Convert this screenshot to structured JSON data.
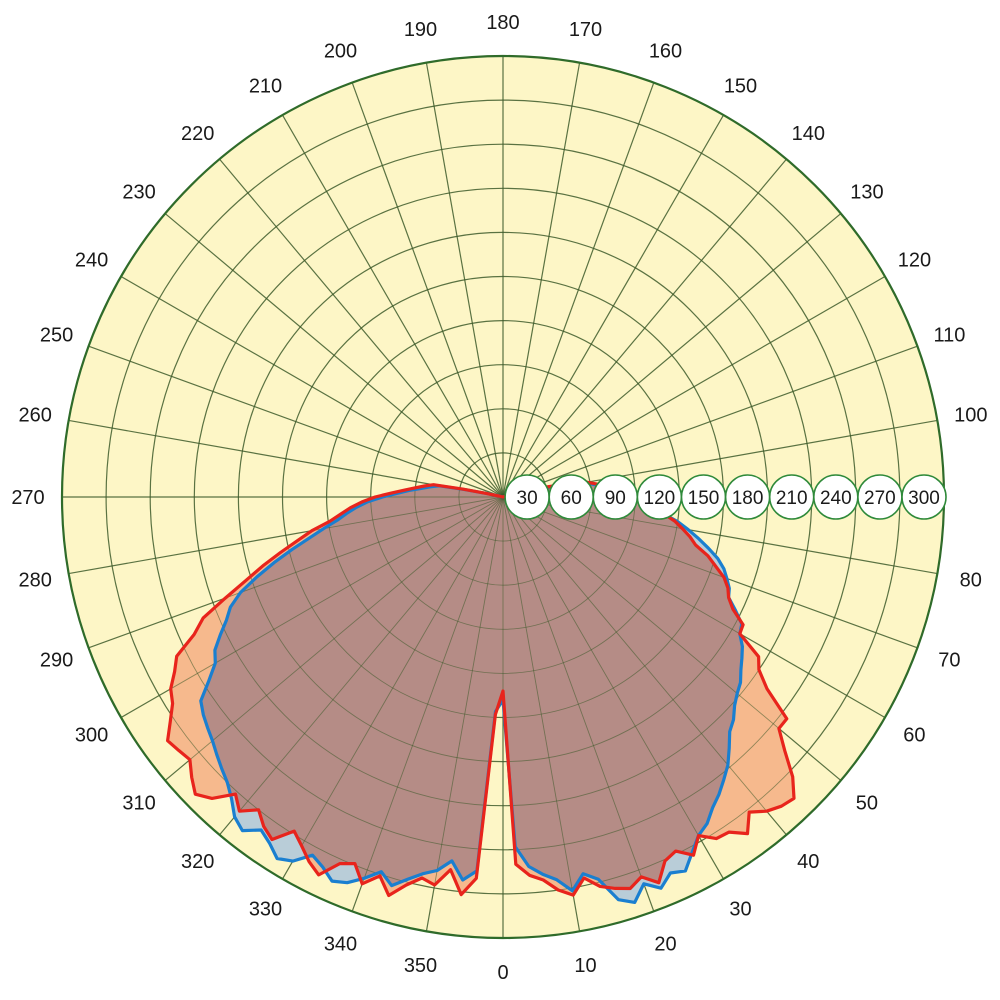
{
  "chart_data": {
    "type": "polar",
    "title": "",
    "angular_axis": {
      "direction": "counterclockwise",
      "zero_at": "bottom",
      "labels": [
        "0",
        "10",
        "20",
        "30",
        "40",
        "50",
        "60",
        "70",
        "80",
        "100",
        "110",
        "120",
        "130",
        "140",
        "150",
        "160",
        "170",
        "180",
        "190",
        "200",
        "210",
        "220",
        "230",
        "240",
        "250",
        "260",
        "270",
        "280",
        "290",
        "300",
        "310",
        "320",
        "330",
        "340",
        "350"
      ],
      "label_angles": [
        0,
        10,
        20,
        30,
        40,
        50,
        60,
        70,
        80,
        100,
        110,
        120,
        130,
        140,
        150,
        160,
        170,
        180,
        190,
        200,
        210,
        220,
        230,
        240,
        250,
        260,
        270,
        280,
        290,
        300,
        310,
        320,
        330,
        340,
        350
      ]
    },
    "radial_axis": {
      "range": [
        0,
        300
      ],
      "ticks": [
        30,
        60,
        90,
        120,
        150,
        180,
        210,
        240,
        270,
        300
      ],
      "tick_labels": [
        "30",
        "60",
        "90",
        "120",
        "150",
        "180",
        "210",
        "240",
        "270",
        "300"
      ],
      "label_position": "right"
    },
    "grid": true,
    "colors": {
      "background": "#fdf6c6",
      "outer_ring": "#2f6b2a",
      "red_line": "#e8241c",
      "red_fill": "#f6b98d",
      "blue_line": "#1a7fd0",
      "blue_fill": "#b9cdd8",
      "overlap_fill": "#b58c86"
    },
    "series": [
      {
        "color": "red",
        "theta": [
          0,
          2,
          4,
          6,
          8,
          10,
          12,
          14,
          16,
          18,
          20,
          22,
          24,
          26,
          28,
          30,
          32,
          34,
          36,
          38,
          40,
          42,
          44,
          46,
          48,
          50,
          52,
          54,
          56,
          58,
          60,
          62,
          64,
          66,
          68,
          70,
          72,
          74,
          76,
          78,
          80,
          82,
          84,
          86,
          88,
          90,
          92,
          94,
          96,
          98,
          100,
          101,
          102,
          103,
          104,
          105,
          106,
          107,
          108,
          109,
          110,
          251,
          252,
          253,
          254,
          255,
          256,
          257,
          258,
          259,
          260,
          262,
          264,
          266,
          268,
          270,
          272,
          274,
          276,
          278,
          280,
          282,
          284,
          286,
          288,
          290,
          292,
          294,
          296,
          298,
          300,
          302,
          304,
          306,
          308,
          310,
          312,
          314,
          316,
          318,
          320,
          322,
          324,
          326,
          328,
          330,
          332,
          334,
          336,
          338,
          340,
          342,
          344,
          346,
          348,
          350,
          352,
          354,
          356,
          358
        ],
        "r": [
          132,
          250,
          258,
          262,
          270,
          275,
          265,
          273,
          277,
          280,
          275,
          283,
          271,
          268,
          276,
          266,
          274,
          275,
          283,
          272,
          279,
          283,
          285,
          274,
          258,
          245,
          245,
          222,
          210,
          205,
          186,
          185,
          174,
          168,
          165,
          160,
          152,
          145,
          135,
          130,
          124,
          118,
          110,
          102,
          97,
          90,
          82,
          76,
          70,
          64,
          58,
          50,
          40,
          30,
          15,
          2,
          0,
          0,
          0,
          0,
          0,
          0,
          0,
          0,
          0,
          0,
          0,
          3,
          12,
          28,
          48,
          54,
          60,
          67,
          76,
          87,
          96,
          104,
          111,
          119,
          132,
          143,
          156,
          170,
          184,
          201,
          220,
          230,
          247,
          253,
          261,
          265,
          273,
          282,
          280,
          278,
          285,
          291,
          285,
          272,
          279,
          270,
          277,
          281,
          268,
          274,
          281,
          286,
          273,
          269,
          280,
          271,
          282,
          272,
          265,
          268,
          256,
          272,
          260,
          148
        ]
      },
      {
        "color": "blue",
        "theta": [
          0,
          2,
          4,
          6,
          8,
          10,
          12,
          14,
          16,
          18,
          20,
          22,
          24,
          26,
          28,
          30,
          32,
          34,
          36,
          38,
          40,
          42,
          44,
          46,
          48,
          50,
          52,
          54,
          56,
          58,
          60,
          62,
          64,
          66,
          68,
          70,
          72,
          74,
          76,
          78,
          80,
          82,
          84,
          86,
          88,
          90,
          92,
          94,
          96,
          98,
          100,
          101,
          102,
          103,
          104,
          105,
          106,
          107,
          108,
          109,
          110,
          251,
          252,
          253,
          254,
          255,
          256,
          257,
          258,
          259,
          260,
          262,
          264,
          266,
          268,
          270,
          272,
          274,
          276,
          278,
          280,
          282,
          284,
          286,
          288,
          290,
          292,
          294,
          296,
          298,
          300,
          302,
          304,
          306,
          308,
          310,
          312,
          314,
          316,
          318,
          320,
          322,
          324,
          326,
          328,
          330,
          332,
          334,
          336,
          338,
          340,
          342,
          344,
          346,
          348,
          350,
          352,
          354,
          356,
          358
        ],
        "r": [
          138,
          238,
          252,
          258,
          263,
          272,
          262,
          268,
          285,
          290,
          280,
          287,
          280,
          283,
          274,
          266,
          262,
          255,
          250,
          244,
          238,
          230,
          222,
          218,
          212,
          208,
          205,
          200,
          196,
          192,
          186,
          184,
          176,
          168,
          166,
          162,
          158,
          152,
          144,
          136,
          128,
          120,
          110,
          100,
          94,
          86,
          80,
          75,
          68,
          62,
          56,
          48,
          38,
          27,
          12,
          2,
          0,
          0,
          0,
          0,
          0,
          0,
          0,
          0,
          0,
          0,
          0,
          3,
          11,
          26,
          44,
          50,
          56,
          64,
          72,
          82,
          92,
          100,
          107,
          114,
          124,
          135,
          148,
          162,
          176,
          190,
          200,
          206,
          214,
          222,
          226,
          236,
          248,
          252,
          255,
          258,
          262,
          266,
          270,
          276,
          284,
          288,
          280,
          284,
          290,
          286,
          276,
          280,
          286,
          283,
          276,
          268,
          275,
          268,
          262,
          258,
          250,
          262,
          255,
          146
        ]
      }
    ]
  }
}
